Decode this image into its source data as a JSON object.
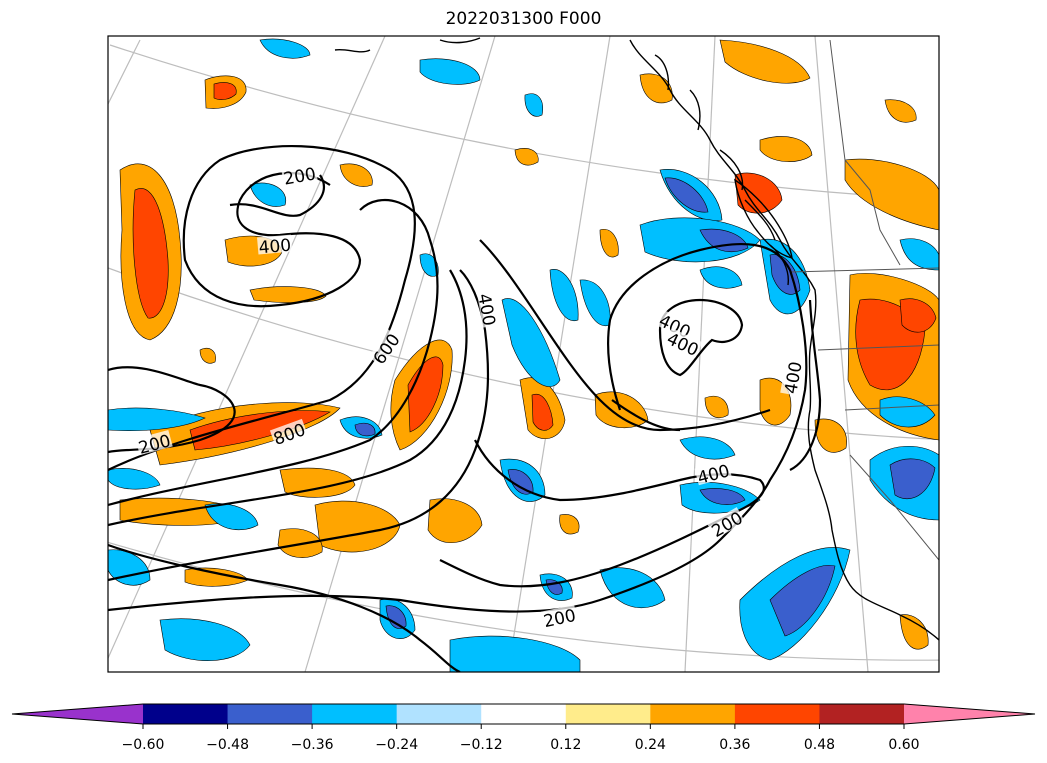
{
  "title": "2022031300 F000",
  "contour_labels": [
    {
      "id": "c200-a",
      "text": "200"
    },
    {
      "id": "c400-a",
      "text": "400"
    },
    {
      "id": "c400-b",
      "text": "400"
    },
    {
      "id": "c600-a",
      "text": "600"
    },
    {
      "id": "c800-a",
      "text": "800"
    },
    {
      "id": "c200-b",
      "text": "200"
    },
    {
      "id": "c400-c",
      "text": "400"
    },
    {
      "id": "c400-d",
      "text": "400"
    },
    {
      "id": "c400-e",
      "text": "400"
    },
    {
      "id": "c400-f",
      "text": "400"
    },
    {
      "id": "c200-c",
      "text": "200"
    },
    {
      "id": "c200-d",
      "text": "200"
    }
  ],
  "colorbar": {
    "extend": "both",
    "ticks": [
      "−0.60",
      "−0.48",
      "−0.36",
      "−0.24",
      "−0.12",
      "0.12",
      "0.24",
      "0.36",
      "0.48",
      "0.60"
    ],
    "bins": [
      {
        "range": "< -0.60",
        "color": "#9932cc"
      },
      {
        "range": "-0.60 to -0.48",
        "color": "#00008b"
      },
      {
        "range": "-0.48 to -0.36",
        "color": "#3a5fcd"
      },
      {
        "range": "-0.36 to -0.24",
        "color": "#00bfff"
      },
      {
        "range": "-0.24 to -0.12",
        "color": "#b0e2ff"
      },
      {
        "range": "-0.12 to 0.12",
        "color": "#ffffff"
      },
      {
        "range": "0.12 to 0.24",
        "color": "#ffec8b"
      },
      {
        "range": "0.24 to 0.36",
        "color": "#ffa500"
      },
      {
        "range": "0.36 to 0.48",
        "color": "#ff4500"
      },
      {
        "range": "0.48 to 0.60",
        "color": "#b22222"
      },
      {
        "range": "> 0.60",
        "color": "#ff82ab"
      }
    ]
  },
  "colors": {
    "contour": "#000000",
    "graticule": "#bdbdbd",
    "coastline": "#000000",
    "border": "#555555"
  }
}
